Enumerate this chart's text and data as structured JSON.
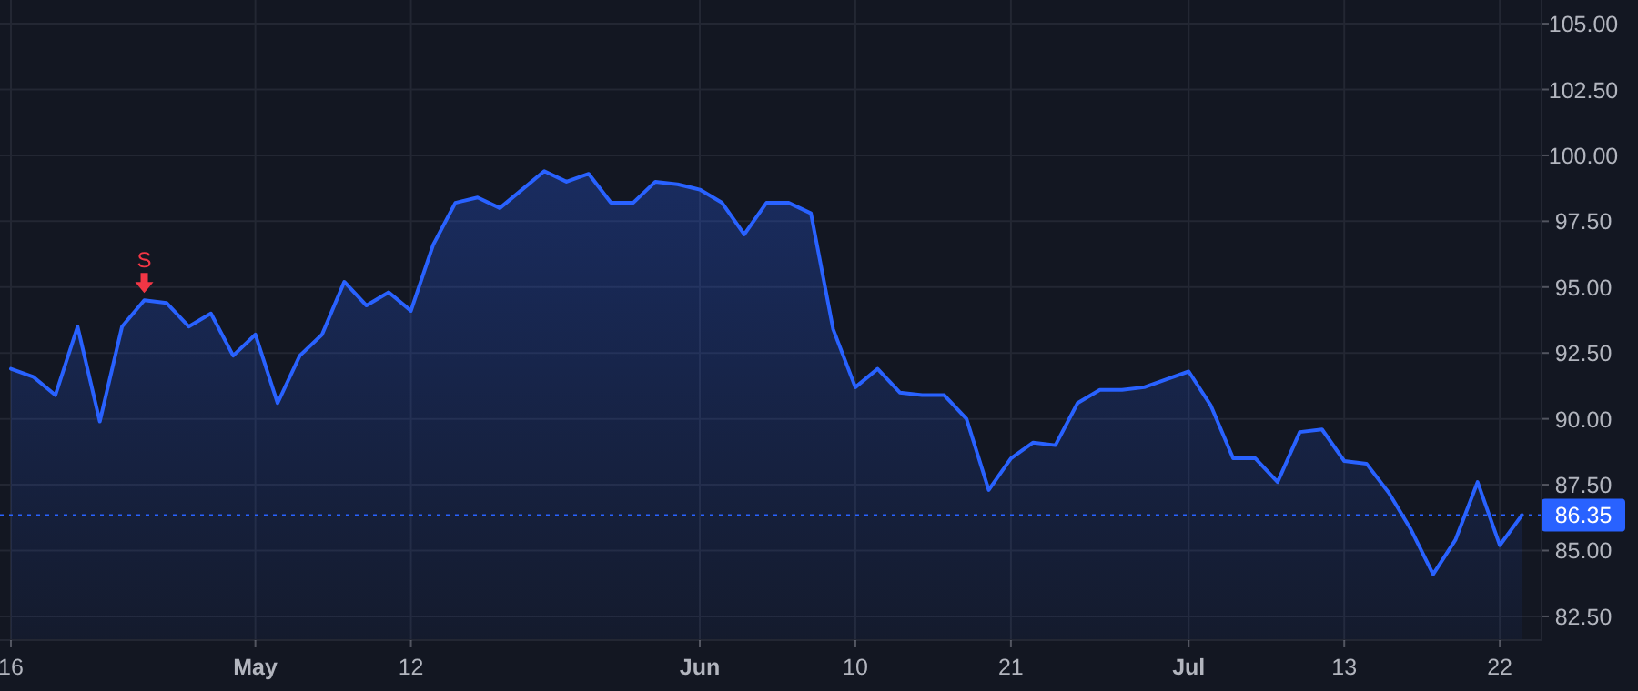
{
  "chart_data": {
    "type": "area",
    "categories": [
      "16",
      null,
      null,
      null,
      null,
      null,
      null,
      null,
      null,
      null,
      null,
      "May",
      null,
      null,
      null,
      null,
      null,
      null,
      "12",
      null,
      null,
      null,
      null,
      null,
      null,
      null,
      null,
      null,
      null,
      null,
      null,
      "Jun",
      null,
      null,
      null,
      null,
      null,
      null,
      "10",
      null,
      null,
      null,
      null,
      null,
      null,
      "21",
      null,
      null,
      null,
      null,
      null,
      null,
      null,
      "Jul",
      null,
      null,
      null,
      null,
      null,
      null,
      "13",
      null,
      null,
      null,
      null,
      null,
      null,
      "22",
      null
    ],
    "series": [
      {
        "color": "#2962ff",
        "values": [
          91.9,
          91.6,
          90.9,
          93.5,
          89.9,
          93.5,
          94.5,
          94.4,
          93.5,
          94.0,
          92.4,
          93.2,
          90.6,
          92.4,
          93.2,
          95.2,
          94.3,
          94.8,
          94.1,
          96.6,
          98.2,
          98.4,
          98.0,
          98.7,
          99.4,
          99.0,
          99.3,
          98.2,
          98.2,
          99.0,
          98.9,
          98.7,
          98.2,
          97.0,
          98.2,
          98.2,
          97.8,
          93.4,
          91.2,
          91.9,
          91.0,
          90.9,
          90.9,
          90.0,
          87.3,
          88.5,
          89.1,
          89.0,
          90.6,
          91.1,
          91.1,
          91.2,
          91.5,
          91.8,
          90.5,
          88.5,
          88.5,
          87.6,
          89.5,
          89.6,
          88.4,
          88.3,
          87.2,
          85.8,
          84.1,
          85.4,
          87.6,
          85.2,
          86.35
        ]
      }
    ],
    "ylim": [
      81.6,
      105.9
    ],
    "yticks": [
      {
        "value": 82.5,
        "label": "82.50"
      },
      {
        "value": 85,
        "label": "85.00"
      },
      {
        "value": 87.5,
        "label": "87.50"
      },
      {
        "value": 90,
        "label": "90.00"
      },
      {
        "value": 92.5,
        "label": "92.50"
      },
      {
        "value": 95,
        "label": "95.00"
      },
      {
        "value": 97.5,
        "label": "97.50"
      },
      {
        "value": 100,
        "label": "100.00"
      },
      {
        "value": 102.5,
        "label": "102.50"
      },
      {
        "value": 105,
        "label": "105.00"
      }
    ],
    "ref_lines": [
      {
        "axis": "y",
        "value": 86.35,
        "label": "86.35",
        "color": "#2962ff",
        "line_style": "dotted"
      }
    ],
    "annotations": [
      {
        "text": "S",
        "y": 94.5
      }
    ],
    "grid": true,
    "marker": "none",
    "line_style": "solid"
  }
}
